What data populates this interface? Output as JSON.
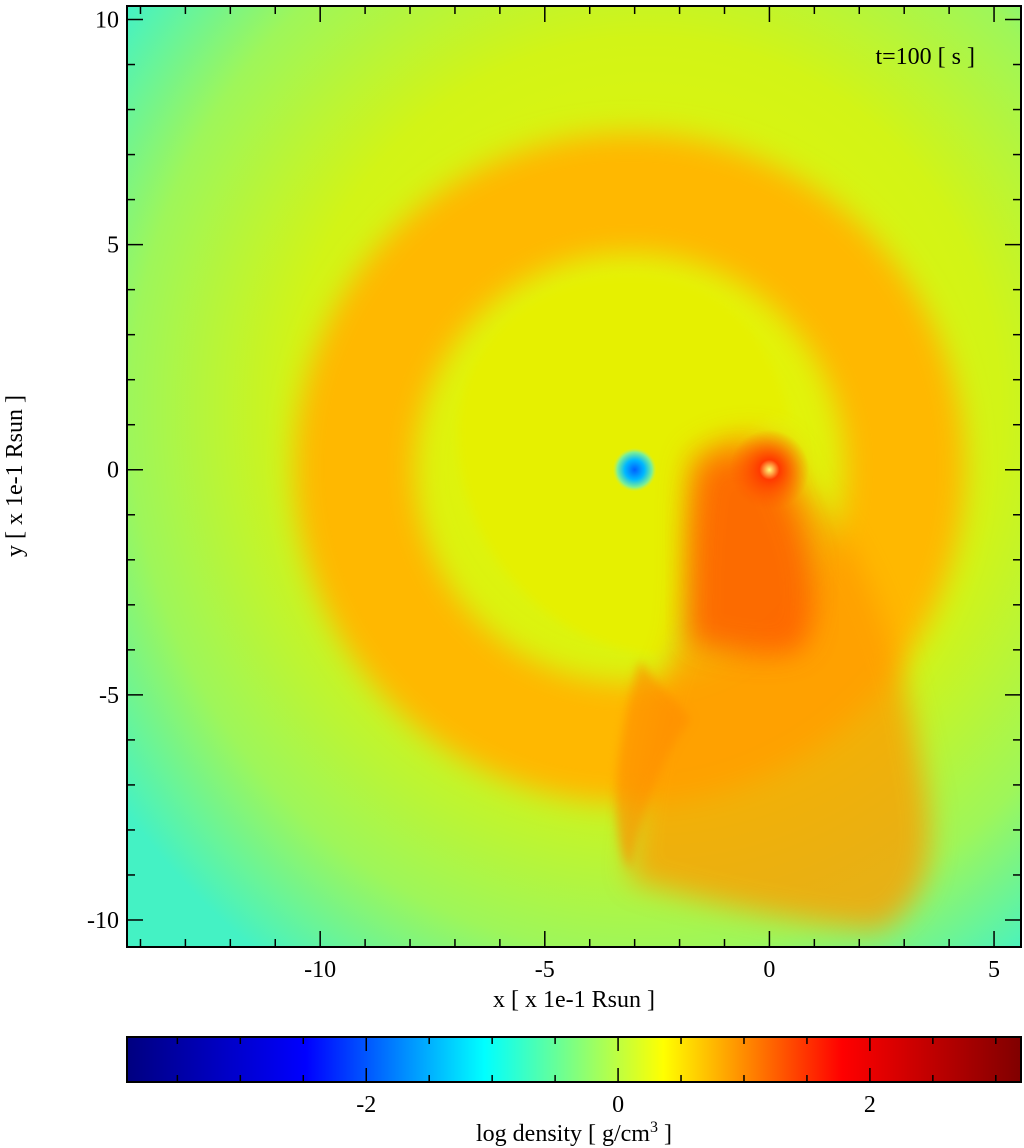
{
  "chart_data": {
    "type": "heatmap",
    "title": "",
    "annotation": "t=100 [ s ]",
    "xlabel": "x [ x 1e-1 Rsun ]",
    "ylabel": "y [ x 1e-1 Rsun ]",
    "xlim": [
      -14.3,
      5.6
    ],
    "ylim": [
      -10.6,
      10.3
    ],
    "x_ticks": [
      -10,
      -5,
      0,
      5
    ],
    "x_tick_labels": [
      "-10",
      "-5",
      "0",
      "5"
    ],
    "y_ticks": [
      -10,
      -5,
      0,
      5,
      10
    ],
    "y_tick_labels": [
      "-10",
      "-5",
      "0",
      "5",
      "10"
    ],
    "x_minor_step": 1,
    "y_minor_step": 1,
    "colorbar": {
      "label_prefix": "log density [ g/cm",
      "label_sup": "3",
      "label_suffix": " ]",
      "range": [
        -3.9,
        3.2
      ],
      "ticks": [
        -2,
        0,
        2
      ],
      "tick_labels": [
        "-2",
        "0",
        "2"
      ],
      "minor_step": 0.5,
      "colors": [
        "#000080",
        "#0000ff",
        "#00ffff",
        "#ffff00",
        "#ff0000",
        "#800000"
      ]
    },
    "features": [
      {
        "label": "density minimum (companion)",
        "x": -3.0,
        "y": 0.0,
        "value": -1.5
      },
      {
        "label": "dense core",
        "x": 0.0,
        "y": 0.0,
        "value": 2.2
      }
    ],
    "grid": false,
    "legend": "none"
  }
}
